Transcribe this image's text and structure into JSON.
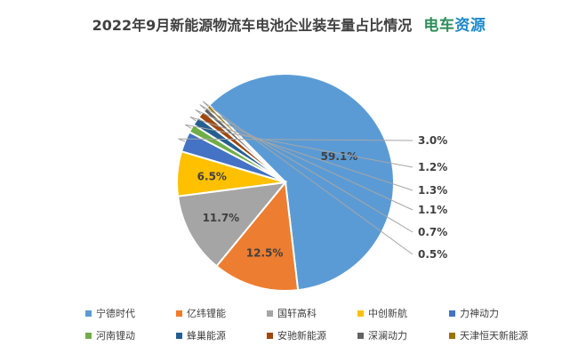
{
  "chart_data": {
    "type": "pie",
    "title": "2022年9月新能源物流车电池企业装车量占比情况",
    "brand": [
      "电车",
      "资源"
    ],
    "labels": [
      "宁德时代",
      "亿纬锂能",
      "国轩高科",
      "中创新航",
      "力神动力",
      "河南锂动",
      "蜂巢能源",
      "安驰新能源",
      "深澜动力",
      "天津恒天新能源"
    ],
    "values": [
      59.1,
      12.5,
      11.7,
      6.5,
      3.0,
      1.2,
      1.3,
      1.1,
      0.7,
      0.5
    ],
    "value_labels": [
      "59.1%",
      "12.5%",
      "11.7%",
      "6.5%",
      "3.0%",
      "1.2%",
      "1.3%",
      "1.1%",
      "0.7%",
      "0.5%"
    ],
    "colors": [
      "#5b9bd5",
      "#ed7d31",
      "#a5a5a5",
      "#ffc000",
      "#4472c4",
      "#70ad47",
      "#255e91",
      "#9e480e",
      "#636363",
      "#997300"
    ],
    "legend_position": "bottom"
  }
}
